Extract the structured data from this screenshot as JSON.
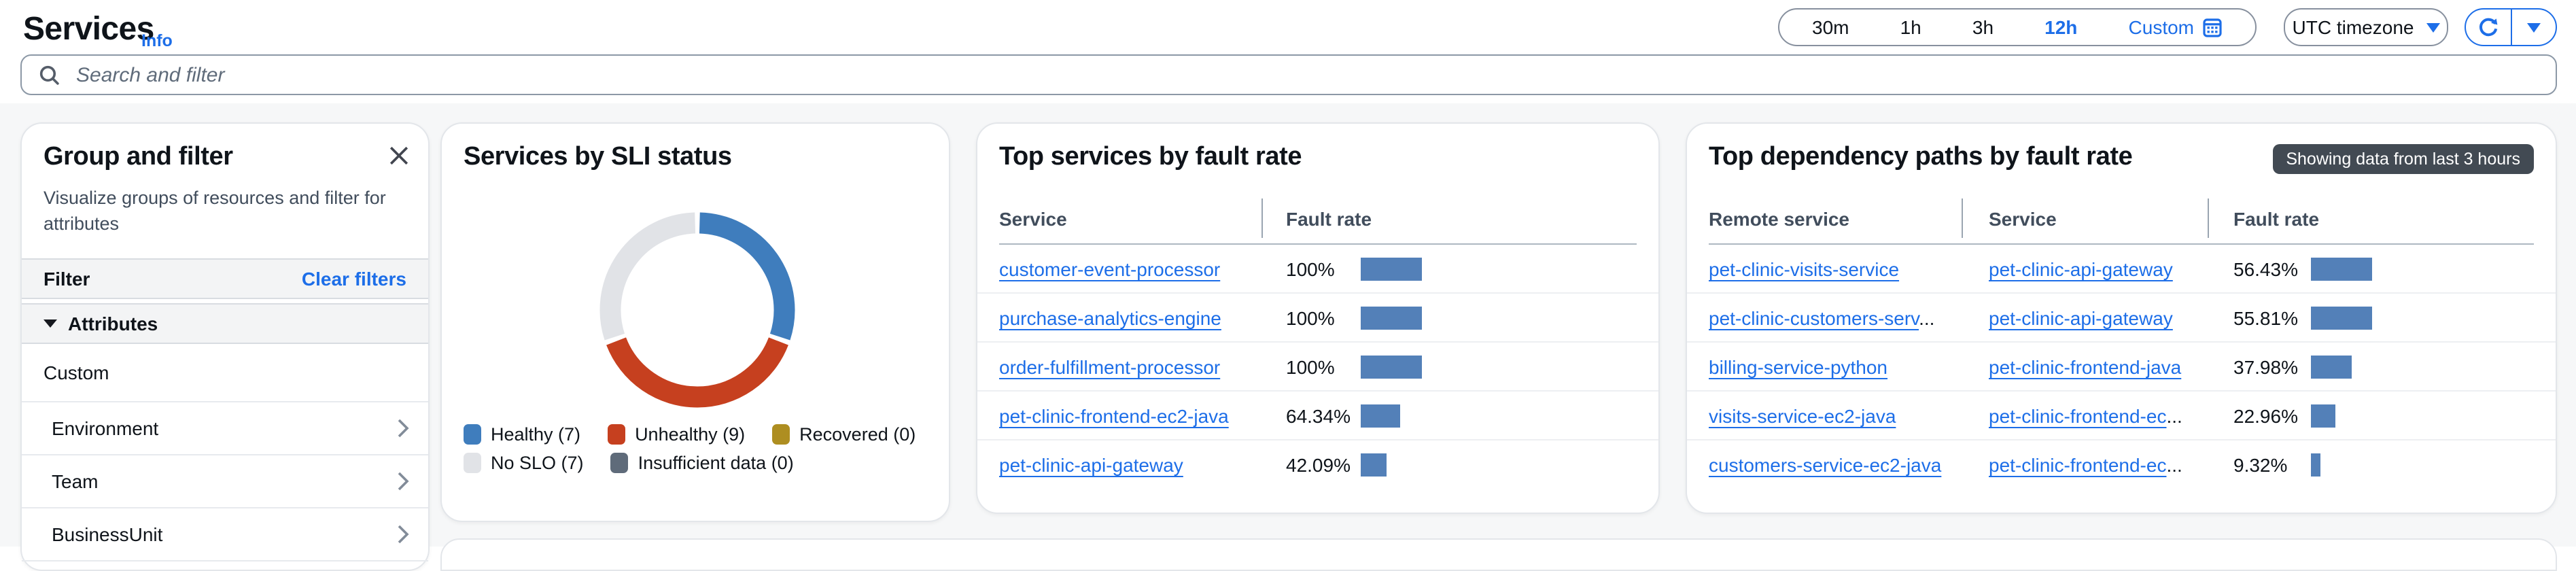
{
  "header": {
    "title": "Services",
    "info_label": "Info",
    "time_ranges": [
      {
        "label": "30m",
        "selected": false
      },
      {
        "label": "1h",
        "selected": false
      },
      {
        "label": "3h",
        "selected": false
      },
      {
        "label": "12h",
        "selected": true
      },
      {
        "label": "Custom",
        "selected": false,
        "calendar_icon": true
      }
    ],
    "timezone_label": "UTC timezone",
    "search_placeholder": "Search and filter"
  },
  "group_filter_panel": {
    "title": "Group and filter",
    "description": "Visualize groups of resources and filter for attributes",
    "filter_label": "Filter",
    "clear_filters_label": "Clear filters",
    "attributes_label": "Attributes",
    "custom_label": "Custom",
    "attribute_items": [
      {
        "label": "Environment"
      },
      {
        "label": "Team"
      },
      {
        "label": "BusinessUnit"
      }
    ]
  },
  "colors": {
    "accent_blue": "#1d6ee8",
    "bar_blue": "#5380b8",
    "badge_bg": "#424a53",
    "healthy": "#3f7dbd",
    "unhealthy": "#c6401f",
    "recovered": "#ae8e21",
    "no_slo": "#e1e3e7",
    "insufficient": "#5f6b7a"
  },
  "chart_data": [
    {
      "type": "pie",
      "donut": true,
      "title": "Services by SLI status",
      "labels": [
        "Healthy",
        "Unhealthy",
        "Recovered",
        "No SLO",
        "Insufficient data"
      ],
      "values": [
        7,
        9,
        0,
        7,
        0
      ],
      "colors": [
        "#3f7dbd",
        "#c6401f",
        "#ae8e21",
        "#e1e3e7",
        "#5f6b7a"
      ],
      "legend_rows": [
        [
          0,
          1,
          2
        ],
        [
          3,
          4
        ]
      ],
      "legend_position": "bottom"
    },
    {
      "type": "table",
      "title": "Top services by fault rate",
      "columns": [
        "Service",
        "Fault rate"
      ],
      "bar_scale_max": 100,
      "rows": [
        {
          "service": "customer-event-processor",
          "fault_rate": "100%",
          "value": 100
        },
        {
          "service": "purchase-analytics-engine",
          "fault_rate": "100%",
          "value": 100
        },
        {
          "service": "order-fulfillment-processor",
          "fault_rate": "100%",
          "value": 100
        },
        {
          "service": "pet-clinic-frontend-ec2-java",
          "fault_rate": "64.34%",
          "value": 64.34
        },
        {
          "service": "pet-clinic-api-gateway",
          "fault_rate": "42.09%",
          "value": 42.09
        }
      ]
    },
    {
      "type": "table",
      "title": "Top dependency paths by fault rate",
      "badge": "Showing data from last 3 hours",
      "columns": [
        "Remote service",
        "Service",
        "Fault rate"
      ],
      "bar_scale_max": 56.43,
      "rows": [
        {
          "remote_service": "pet-clinic-visits-service",
          "remote_truncated": false,
          "service": "pet-clinic-api-gateway",
          "service_truncated": false,
          "fault_rate": "56.43%",
          "value": 56.43
        },
        {
          "remote_service": "pet-clinic-customers-serv",
          "remote_truncated": true,
          "service": "pet-clinic-api-gateway",
          "service_truncated": false,
          "fault_rate": "55.81%",
          "value": 55.81
        },
        {
          "remote_service": "billing-service-python",
          "remote_truncated": false,
          "service": "pet-clinic-frontend-java",
          "service_truncated": false,
          "fault_rate": "37.98%",
          "value": 37.98
        },
        {
          "remote_service": "visits-service-ec2-java",
          "remote_truncated": false,
          "service": "pet-clinic-frontend-ec",
          "service_truncated": true,
          "fault_rate": "22.96%",
          "value": 22.96
        },
        {
          "remote_service": "customers-service-ec2-java",
          "remote_truncated": false,
          "service": "pet-clinic-frontend-ec",
          "service_truncated": true,
          "fault_rate": "9.32%",
          "value": 9.32
        }
      ]
    }
  ]
}
